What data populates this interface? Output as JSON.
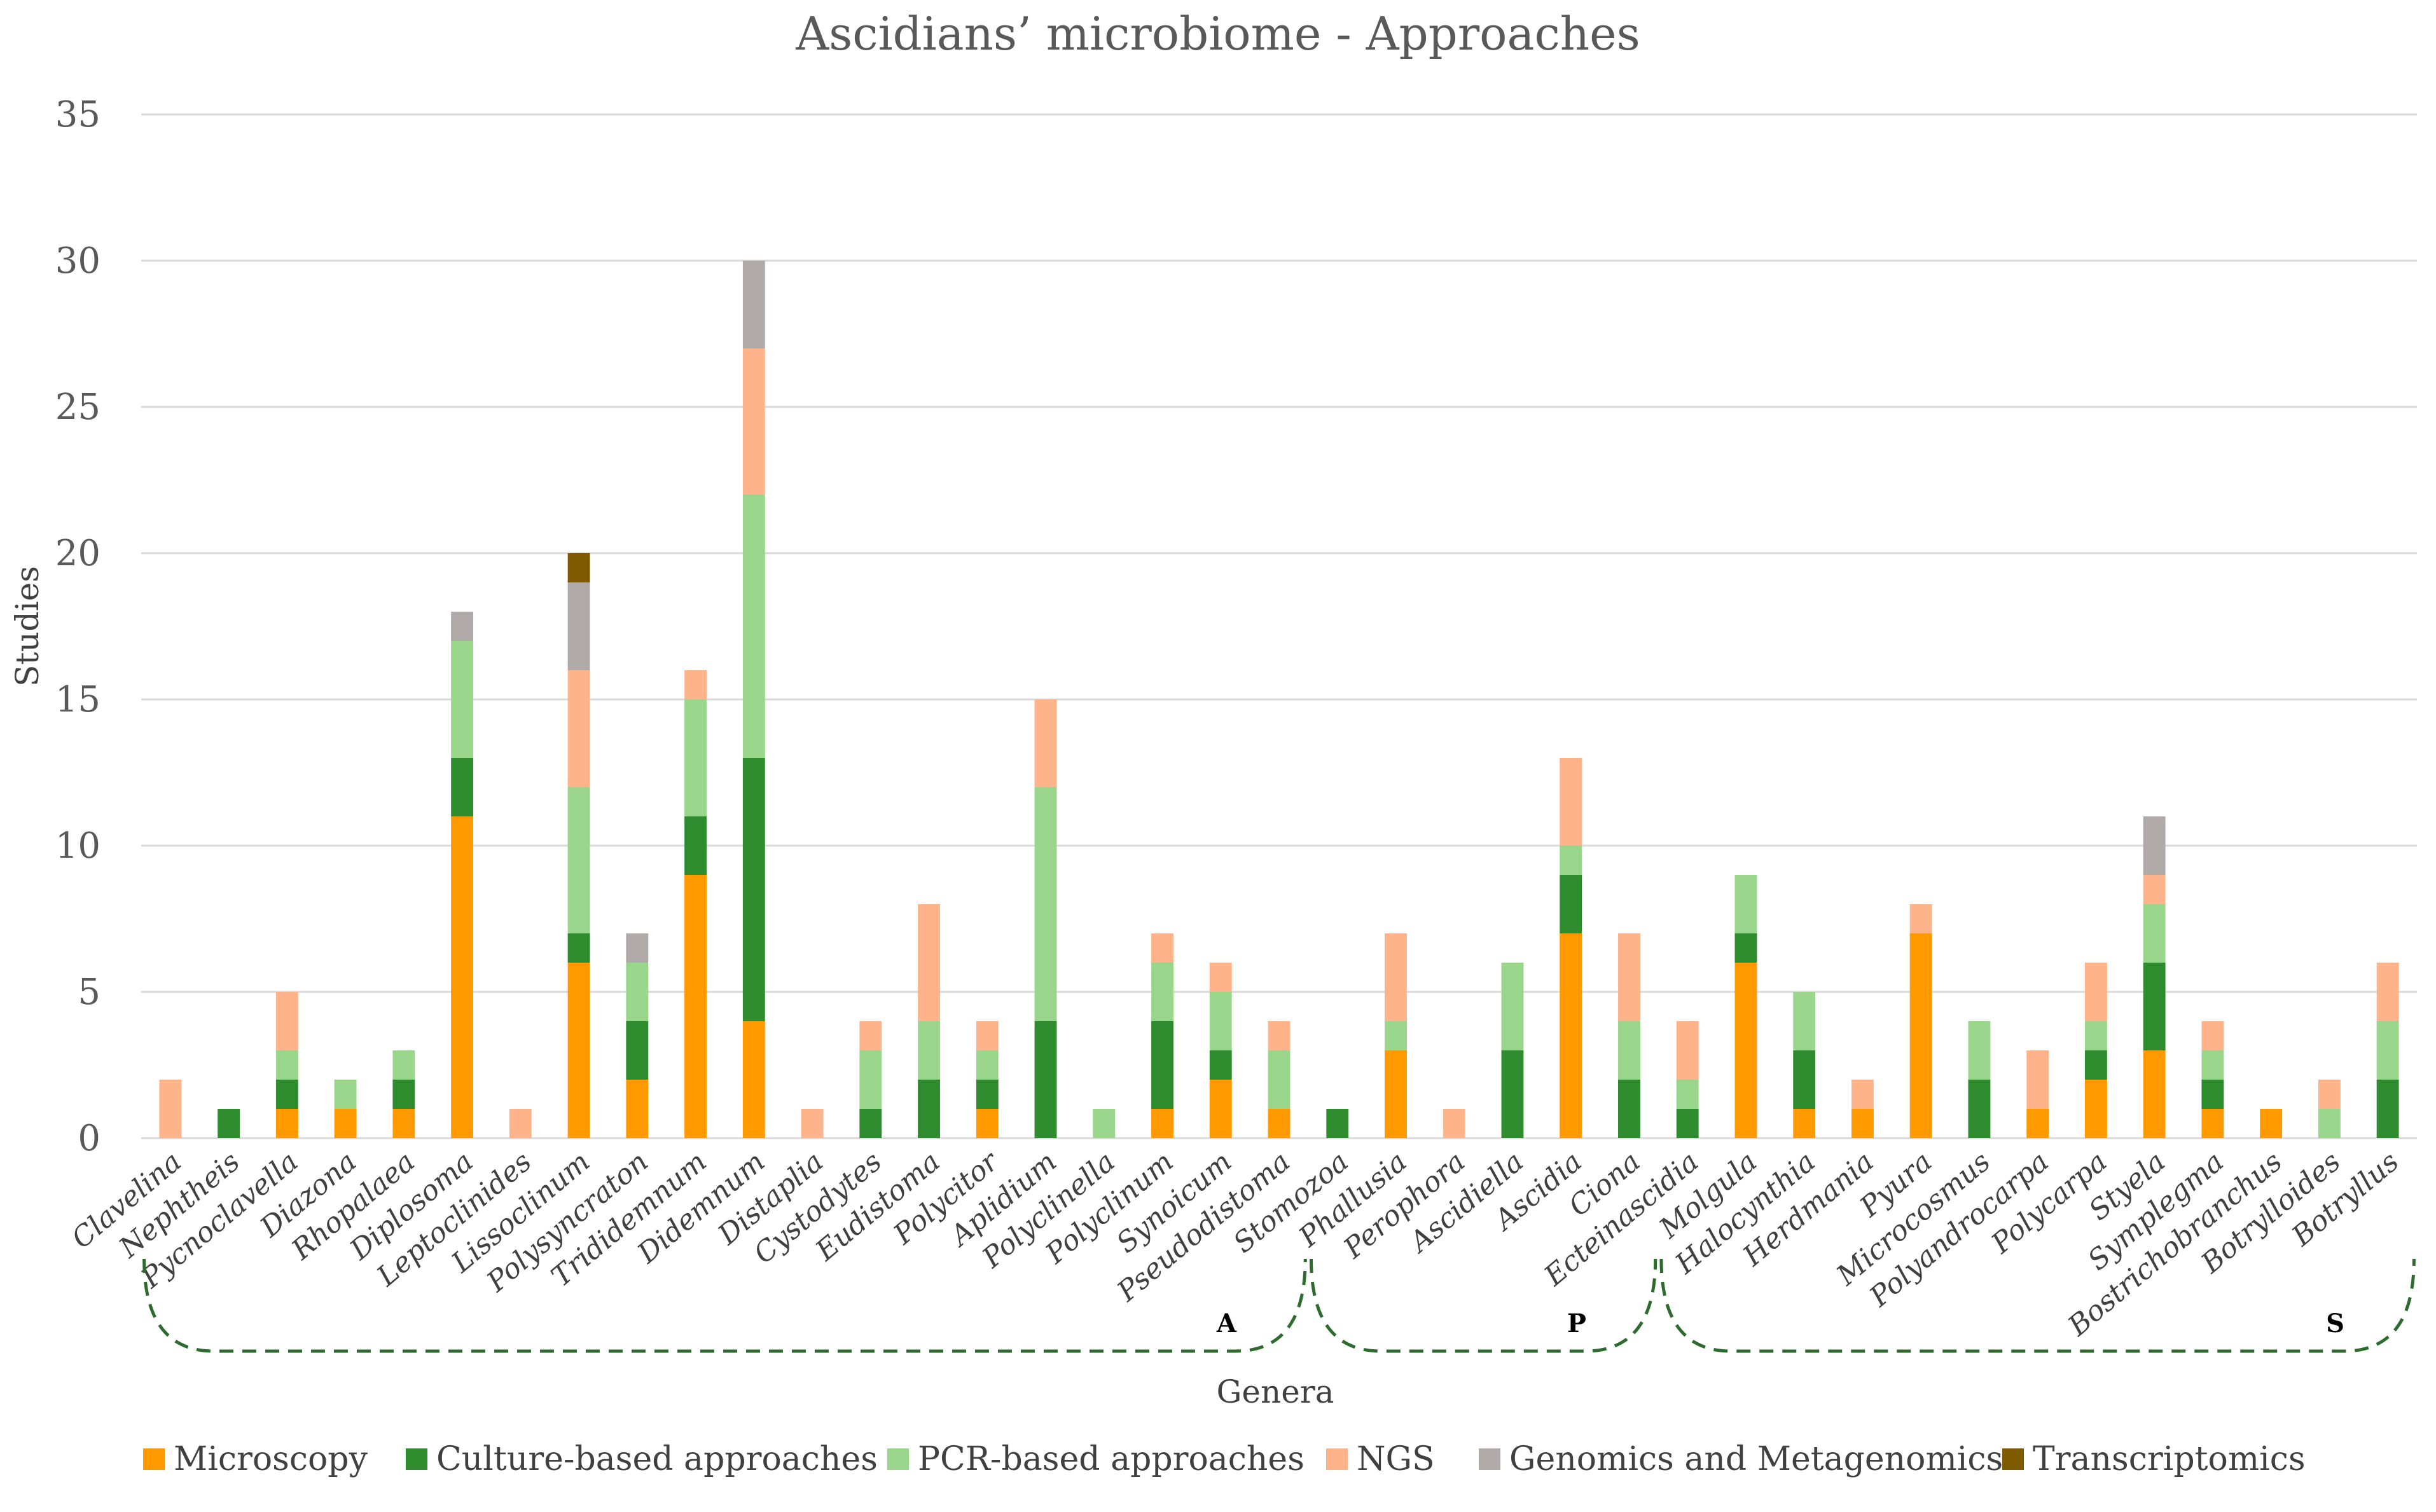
{
  "chart_data": {
    "type": "bar",
    "stacked": true,
    "title": "Ascidians’ microbiome - Approaches",
    "xlabel": "Genera",
    "ylabel": "Studies",
    "ylim": [
      0,
      35
    ],
    "yticks": [
      0,
      5,
      10,
      15,
      20,
      25,
      30,
      35
    ],
    "grid": true,
    "legend_position": "bottom",
    "categories": [
      "Clavelina",
      "Nephtheis",
      "Pycnoclavella",
      "Diazona",
      "Rhopalaea",
      "Diplosoma",
      "Leptoclinides",
      "Lissoclinum",
      "Polysyncraton",
      "Trididemnum",
      "Didemnum",
      "Distaplia",
      "Cystodytes",
      "Eudistoma",
      "Polycitor",
      "Aplidium",
      "Polyclinella",
      "Polyclinum",
      "Synoicum",
      "Pseudodistoma",
      "Stomozoa",
      "Phallusia",
      "Perophora",
      "Ascidiella",
      "Ascidia",
      "Ciona",
      "Ecteinascidia",
      "Molgula",
      "Halocynthia",
      "Herdmania",
      "Pyura",
      "Microcosmus",
      "Polyandrocarpa",
      "Polycarpa",
      "Styela",
      "Symplegma",
      "Bostrichobranchus",
      "Botrylloides",
      "Botryllus"
    ],
    "series": [
      {
        "name": "Microscopy",
        "color": "#ff9900",
        "values": [
          0,
          0,
          1,
          1,
          1,
          11,
          0,
          6,
          2,
          9,
          4,
          0,
          0,
          0,
          1,
          0,
          0,
          1,
          2,
          1,
          0,
          3,
          0,
          0,
          7,
          0,
          0,
          6,
          1,
          1,
          7,
          0,
          1,
          2,
          3,
          1,
          1,
          0,
          0
        ]
      },
      {
        "name": "Culture-based approaches",
        "color": "#2e8b2e",
        "values": [
          0,
          1,
          1,
          0,
          1,
          2,
          0,
          1,
          2,
          2,
          9,
          0,
          1,
          2,
          1,
          4,
          0,
          3,
          1,
          0,
          1,
          0,
          0,
          3,
          2,
          2,
          1,
          1,
          2,
          0,
          0,
          2,
          0,
          1,
          3,
          1,
          0,
          0,
          2
        ]
      },
      {
        "name": "PCR-based approaches",
        "color": "#99d68c",
        "values": [
          0,
          0,
          1,
          1,
          1,
          4,
          0,
          5,
          2,
          4,
          9,
          0,
          2,
          2,
          1,
          8,
          1,
          2,
          2,
          2,
          0,
          1,
          0,
          3,
          1,
          2,
          1,
          2,
          2,
          0,
          0,
          2,
          0,
          1,
          2,
          1,
          0,
          1,
          2
        ]
      },
      {
        "name": "NGS",
        "color": "#ffb38a",
        "values": [
          2,
          0,
          2,
          0,
          0,
          0,
          1,
          4,
          0,
          1,
          5,
          1,
          1,
          4,
          1,
          3,
          0,
          1,
          1,
          1,
          0,
          3,
          1,
          0,
          3,
          3,
          2,
          0,
          0,
          1,
          1,
          0,
          2,
          2,
          1,
          1,
          0,
          1,
          2
        ]
      },
      {
        "name": "Genomics and Metagenomics",
        "color": "#b0aaa8",
        "values": [
          0,
          0,
          0,
          0,
          0,
          1,
          0,
          3,
          1,
          0,
          3,
          0,
          0,
          0,
          0,
          0,
          0,
          0,
          0,
          0,
          0,
          0,
          0,
          0,
          0,
          0,
          0,
          0,
          0,
          0,
          0,
          0,
          0,
          0,
          2,
          0,
          0,
          0,
          0
        ]
      },
      {
        "name": "Transcriptomics",
        "color": "#7f5a00",
        "values": [
          0,
          0,
          0,
          0,
          0,
          0,
          0,
          1,
          0,
          0,
          0,
          0,
          0,
          0,
          0,
          0,
          0,
          0,
          0,
          0,
          0,
          0,
          0,
          0,
          0,
          0,
          0,
          0,
          0,
          0,
          0,
          0,
          0,
          0,
          0,
          0,
          0,
          0,
          0
        ]
      }
    ],
    "groups": [
      {
        "label": "A",
        "from": "Clavelina",
        "to": "Pseudodistoma"
      },
      {
        "label": "P",
        "from": "Stomozoa",
        "to": "Ciona"
      },
      {
        "label": "S",
        "from": "Ecteinascidia",
        "to": "Botryllus"
      }
    ]
  }
}
